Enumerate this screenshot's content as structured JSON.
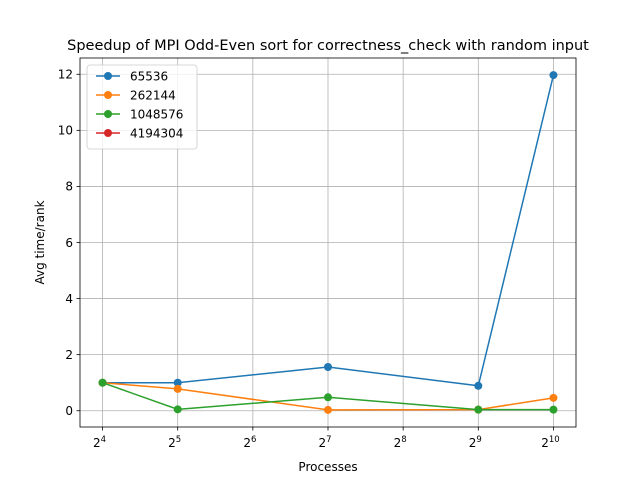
{
  "chart_data": {
    "type": "line",
    "title": "Speedup of MPI Odd-Even sort for correctness_check with random input",
    "xlabel": "Processes",
    "ylabel": "Avg time/rank",
    "x_scale": "log2",
    "x": [
      16,
      32,
      128,
      512,
      1024
    ],
    "xticks": [
      {
        "value": 16,
        "base": "2",
        "exp": "4"
      },
      {
        "value": 32,
        "base": "2",
        "exp": "5"
      },
      {
        "value": 64,
        "base": "2",
        "exp": "6"
      },
      {
        "value": 128,
        "base": "2",
        "exp": "7"
      },
      {
        "value": 256,
        "base": "2",
        "exp": "8"
      },
      {
        "value": 512,
        "base": "2",
        "exp": "9"
      },
      {
        "value": 1024,
        "base": "2",
        "exp": "10"
      }
    ],
    "yticks": [
      "0",
      "2",
      "4",
      "6",
      "8",
      "10",
      "12"
    ],
    "ylim": [
      -0.58,
      12.58
    ],
    "grid": true,
    "legend_position": "upper-left",
    "series": [
      {
        "name": "65536",
        "color": "#1f77b4",
        "values": [
          1.0,
          1.0,
          1.56,
          0.89,
          11.97
        ]
      },
      {
        "name": "262144",
        "color": "#ff7f0e",
        "values": [
          1.0,
          0.78,
          0.03,
          0.04,
          0.46
        ]
      },
      {
        "name": "1048576",
        "color": "#2ca02c",
        "values": [
          1.0,
          0.05,
          0.48,
          0.04,
          0.04
        ]
      },
      {
        "name": "4194304",
        "color": "#d62728",
        "values": [
          null,
          null,
          null,
          null,
          null
        ]
      }
    ]
  }
}
